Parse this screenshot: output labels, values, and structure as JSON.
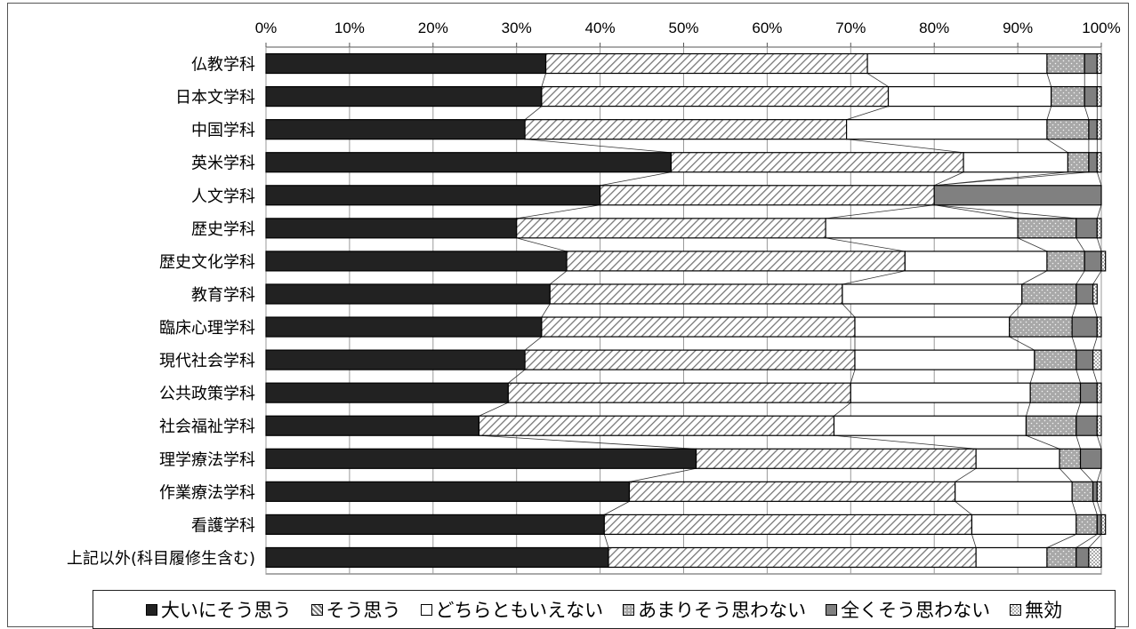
{
  "chart_data": {
    "type": "bar",
    "orientation": "horizontal",
    "stacked": "percent",
    "categories": [
      "仏教学科",
      "日本文学科",
      "中国学科",
      "英米学科",
      "人文学科",
      "歴史学科",
      "歴史文化学科",
      "教育学科",
      "臨床心理学科",
      "現代社会学科",
      "公共政策学科",
      "社会福祉学科",
      "理学療法学科",
      "作業療法学科",
      "看護学科",
      "上記以外(科目履修生含む)"
    ],
    "x_ticks": [
      "0%",
      "10%",
      "20%",
      "30%",
      "40%",
      "50%",
      "60%",
      "70%",
      "80%",
      "90%",
      "100%"
    ],
    "xlim": [
      0,
      100
    ],
    "grid": "vertical",
    "legend_position": "bottom",
    "series": [
      {
        "name": "大いにそう思う",
        "color": "#222222",
        "pattern": "solid",
        "values": [
          33.5,
          33.0,
          31.0,
          48.5,
          40.0,
          30.0,
          36.0,
          34.0,
          33.0,
          31.0,
          29.0,
          25.5,
          51.5,
          43.5,
          40.5,
          41.0
        ]
      },
      {
        "name": "そう思う",
        "color": "#bbbbbb",
        "pattern": "diagonal",
        "values": [
          38.5,
          41.5,
          38.5,
          35.0,
          40.0,
          37.0,
          40.5,
          35.0,
          37.5,
          39.5,
          41.0,
          42.5,
          33.5,
          39.0,
          44.0,
          44.0
        ]
      },
      {
        "name": "どちらともいえない",
        "color": "#ffffff",
        "pattern": "solid",
        "values": [
          21.5,
          19.5,
          24.0,
          12.5,
          0.0,
          23.0,
          17.0,
          21.5,
          18.5,
          21.5,
          21.5,
          23.0,
          10.0,
          14.0,
          12.5,
          8.5
        ]
      },
      {
        "name": "あまりそう思わない",
        "color": "#b0b0b0",
        "pattern": "dots",
        "values": [
          4.5,
          4.0,
          5.0,
          2.5,
          0.0,
          7.0,
          4.5,
          6.5,
          7.5,
          5.0,
          6.0,
          6.0,
          2.5,
          2.5,
          2.5,
          3.5
        ]
      },
      {
        "name": "全くそう思わない",
        "color": "#808080",
        "pattern": "solid",
        "values": [
          1.5,
          1.5,
          1.0,
          1.0,
          20.0,
          2.5,
          2.0,
          2.0,
          3.0,
          2.0,
          2.0,
          2.5,
          2.5,
          0.5,
          0.5,
          1.5
        ],
        "note_inline": ""
      },
      {
        "name": "無効",
        "color": "#e0e0e0",
        "pattern": "checker",
        "values": [
          0.5,
          0.5,
          0.5,
          0.5,
          0.0,
          0.5,
          0.5,
          0.5,
          0.5,
          1.0,
          0.5,
          0.5,
          0.0,
          0.5,
          0.5,
          1.5
        ]
      }
    ],
    "legend_labels": [
      "■大いにそう思う",
      "▧そう思う",
      "□どちらともいえない",
      "▨あまりそう思わない",
      "■全くそう思わない",
      "▨無効"
    ]
  }
}
